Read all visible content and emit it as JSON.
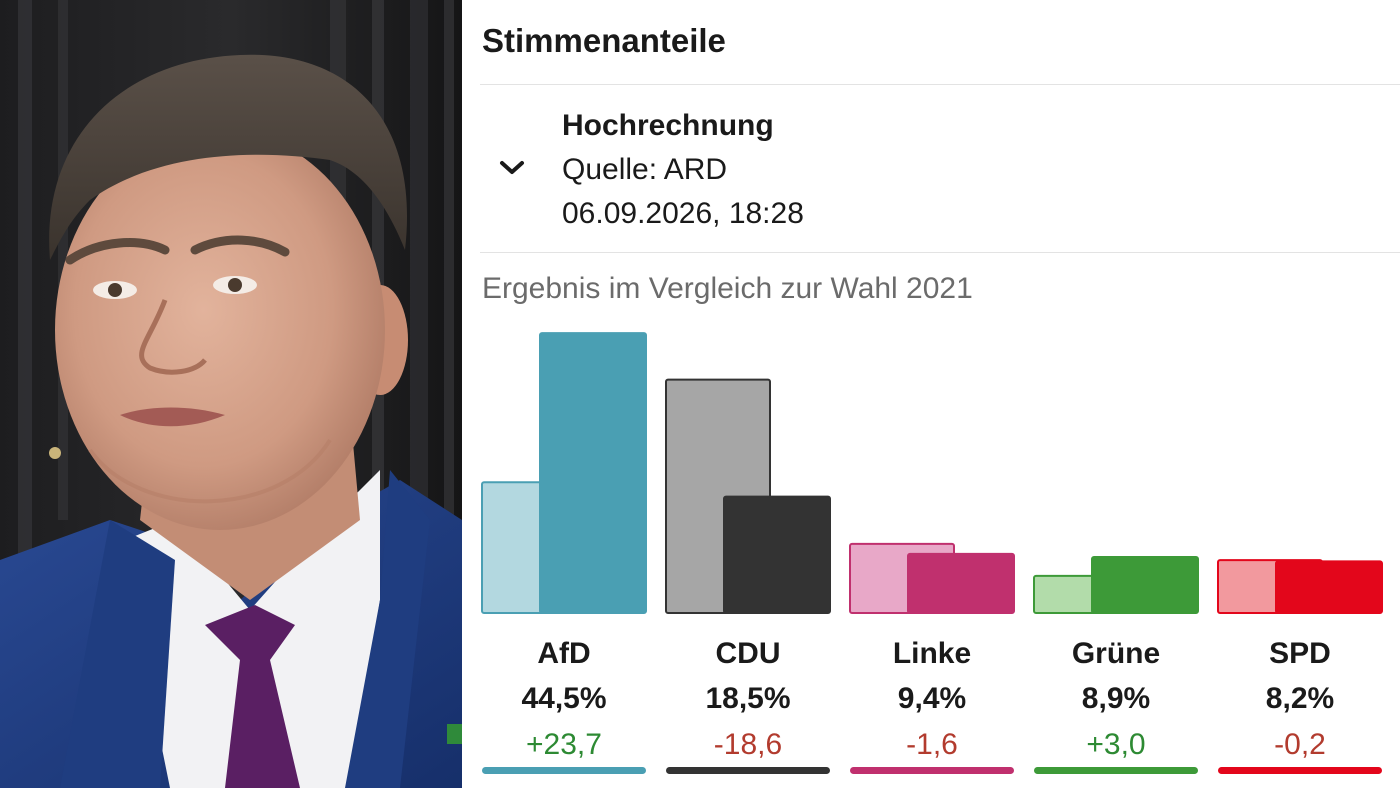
{
  "header": {
    "title": "Stimmenanteile"
  },
  "projection": {
    "title": "Hochrechnung",
    "source": "Quelle: ARD",
    "datetime": "06.09.2026, 18:28",
    "toggle_icon": "chevron-down-icon"
  },
  "chart_subtitle": "Ergebnis im Vergleich zur Wahl 2021",
  "chart_data": {
    "type": "bar",
    "title": "Ergebnis im Vergleich zur Wahl 2021",
    "categories": [
      "AfD",
      "CDU",
      "Linke",
      "Grüne",
      "SPD"
    ],
    "series": [
      {
        "name": "2021",
        "values": [
          20.8,
          37.1,
          11.0,
          5.9,
          8.4
        ]
      },
      {
        "values": [
          44.5,
          18.5,
          9.4,
          8.9,
          8.2
        ]
      }
    ],
    "value_labels": [
      "44,5%",
      "18,5%",
      "9,4%",
      "8,9%",
      "8,2%"
    ],
    "diff_labels": [
      "+23,7",
      "-18,6",
      "-1,6",
      "+3,0",
      "-0,2"
    ],
    "ylim": [
      0,
      45
    ],
    "grid": false,
    "colors": {
      "current": [
        "#4a9fb3",
        "#333333",
        "#c0306e",
        "#3d9a38",
        "#e3061b"
      ],
      "previous": [
        "#b3d8e0",
        "#a6a6a6",
        "#e8a8c8",
        "#b2dcaa",
        "#f2999e"
      ],
      "previous_stroke": [
        "#4a9fb3",
        "#333333",
        "#c0306e",
        "#3d9a38",
        "#e3061b"
      ],
      "diff_positive": "#2d8a33",
      "diff_negative": "#b23b2e"
    }
  }
}
